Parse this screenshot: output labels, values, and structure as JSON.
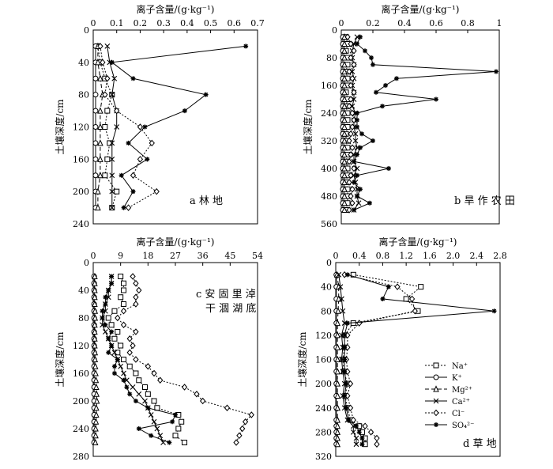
{
  "units_label": "离子含量/(g·kg⁻¹)",
  "ylabel": "土壤深度/cm",
  "legend": [
    {
      "key": "Na",
      "label": "Na⁺",
      "marker": "square",
      "dash": "2,2"
    },
    {
      "key": "K",
      "label": "K⁺",
      "marker": "circle",
      "dash": ""
    },
    {
      "key": "Mg",
      "label": "Mg²⁺",
      "marker": "triangle",
      "dash": "5,3"
    },
    {
      "key": "Ca",
      "label": "Ca²⁺",
      "marker": "x",
      "dash": ""
    },
    {
      "key": "Cl",
      "label": "Cl⁻",
      "marker": "diamond",
      "dash": "2,2"
    },
    {
      "key": "SO4",
      "label": "SO₄²⁻",
      "marker": "star",
      "dash": ""
    }
  ],
  "chart_data": [
    {
      "type": "line",
      "panel": "a 林地",
      "xlabel": "离子含量/(g·kg⁻¹)",
      "ylabel": "土壤深度/cm",
      "xlim": [
        0,
        0.7
      ],
      "xticks": [
        "0",
        "0.1",
        "0.2",
        "0.3",
        "0.4",
        "0.5",
        "0.6",
        "0.7"
      ],
      "ylim": [
        0,
        240
      ],
      "yticks": [
        "0",
        "40",
        "80",
        "120",
        "160",
        "200",
        "240"
      ],
      "depth": [
        20,
        40,
        60,
        80,
        100,
        120,
        140,
        160,
        180,
        200,
        220
      ],
      "series": [
        {
          "name": "Na⁺",
          "key": "Na",
          "values": [
            0.02,
            0.03,
            0.05,
            0.08,
            0.06,
            0.05,
            0.07,
            0.06,
            0.05,
            0.1,
            0.08
          ]
        },
        {
          "name": "K⁺",
          "key": "K",
          "values": [
            0.01,
            0.01,
            0.01,
            0.01,
            0.01,
            0.01,
            0.01,
            0.01,
            0.01,
            0.01,
            0.01
          ]
        },
        {
          "name": "Mg²⁺",
          "key": "Mg",
          "values": [
            0.02,
            0.02,
            0.03,
            0.04,
            0.03,
            0.03,
            0.03,
            0.03,
            0.03,
            0.02,
            0.02
          ]
        },
        {
          "name": "Ca²⁺",
          "key": "Ca",
          "values": [
            0.06,
            0.07,
            0.09,
            0.08,
            0.1,
            0.1,
            0.08,
            0.08,
            0.08,
            0.08,
            0.08
          ]
        },
        {
          "name": "Cl⁻",
          "key": "Cl",
          "values": [
            0.03,
            0.04,
            0.06,
            0.05,
            0.1,
            0.2,
            0.25,
            0.2,
            0.17,
            0.27,
            0.15
          ]
        },
        {
          "name": "SO₄²⁻",
          "key": "SO4",
          "values": [
            0.65,
            0.08,
            0.17,
            0.48,
            0.39,
            0.22,
            0.15,
            0.23,
            0.12,
            0.17,
            0.13
          ]
        }
      ]
    },
    {
      "type": "line",
      "panel": "b 旱作农田",
      "xlabel": "离子含量/(g·kg⁻¹)",
      "ylabel": "土壤深度/cm",
      "xlim": [
        0,
        1.0
      ],
      "xticks": [
        "0",
        "0.2",
        "0.4",
        "0.6",
        "0.8",
        "1"
      ],
      "ylim": [
        0,
        560
      ],
      "yticks": [
        "0",
        "80",
        "160",
        "240",
        "320",
        "400",
        "480",
        "560"
      ],
      "depth": [
        20,
        40,
        60,
        80,
        100,
        120,
        140,
        160,
        180,
        200,
        220,
        240,
        260,
        280,
        300,
        320,
        340,
        360,
        380,
        400,
        420,
        440,
        460,
        480,
        500,
        520
      ],
      "series": [
        {
          "name": "Na⁺",
          "key": "Na",
          "values": [
            0.03,
            0.04,
            0.03,
            0.04,
            0.04,
            0.03,
            0.04,
            0.04,
            0.03,
            0.04,
            0.03,
            0.04,
            0.04,
            0.04,
            0.03,
            0.03,
            0.04,
            0.04,
            0.03,
            0.04,
            0.04,
            0.03,
            0.04,
            0.04,
            0.04,
            0.03
          ]
        },
        {
          "name": "K⁺",
          "key": "K",
          "values": [
            0.01,
            0.01,
            0.01,
            0.01,
            0.01,
            0.01,
            0.01,
            0.01,
            0.01,
            0.01,
            0.01,
            0.01,
            0.01,
            0.01,
            0.01,
            0.01,
            0.01,
            0.01,
            0.01,
            0.01,
            0.01,
            0.01,
            0.01,
            0.01,
            0.01,
            0.01
          ]
        },
        {
          "name": "Mg²⁺",
          "key": "Mg",
          "values": [
            0.02,
            0.02,
            0.02,
            0.02,
            0.02,
            0.02,
            0.02,
            0.02,
            0.02,
            0.02,
            0.02,
            0.02,
            0.02,
            0.02,
            0.02,
            0.02,
            0.02,
            0.02,
            0.02,
            0.02,
            0.02,
            0.02,
            0.02,
            0.02,
            0.02,
            0.02
          ]
        },
        {
          "name": "Ca²⁺",
          "key": "Ca",
          "values": [
            0.1,
            0.08,
            0.07,
            0.07,
            0.08,
            0.07,
            0.08,
            0.07,
            0.08,
            0.08,
            0.07,
            0.09,
            0.08,
            0.08,
            0.09,
            0.09,
            0.1,
            0.08,
            0.08,
            0.1,
            0.08,
            0.09,
            0.1,
            0.1,
            0.11,
            0.08
          ]
        },
        {
          "name": "Cl⁻",
          "key": "Cl",
          "values": [
            0.04,
            0.06,
            0.08,
            0.06,
            0.08,
            0.05,
            0.07,
            0.06,
            0.08,
            0.06,
            0.05,
            0.07,
            0.08,
            0.07,
            0.06,
            0.05,
            0.07,
            0.06,
            0.05,
            0.08,
            0.06,
            0.05,
            0.07,
            0.06,
            0.07,
            0.05
          ]
        },
        {
          "name": "SO₄²⁻",
          "key": "SO4",
          "values": [
            0.12,
            0.1,
            0.15,
            0.19,
            0.2,
            0.98,
            0.35,
            0.28,
            0.22,
            0.6,
            0.26,
            0.1,
            0.1,
            0.1,
            0.13,
            0.2,
            0.12,
            0.1,
            0.08,
            0.3,
            0.1,
            0.08,
            0.12,
            0.1,
            0.18,
            0.08
          ]
        }
      ]
    },
    {
      "type": "line",
      "panel": "c 安固里淖干涸湖底",
      "xlabel": "离子含量/(g·kg⁻¹)",
      "ylabel": "土壤深度/cm",
      "xlim": [
        0,
        54
      ],
      "xticks": [
        "0",
        "9",
        "18",
        "27",
        "36",
        "45",
        "54"
      ],
      "ylim": [
        0,
        280
      ],
      "yticks": [
        "0",
        "40",
        "80",
        "120",
        "160",
        "200",
        "240",
        "280"
      ],
      "depth": [
        20,
        30,
        40,
        50,
        60,
        70,
        80,
        90,
        100,
        110,
        120,
        130,
        140,
        150,
        160,
        170,
        180,
        190,
        200,
        210,
        220,
        230,
        240,
        250,
        260
      ],
      "series": [
        {
          "name": "Na⁺",
          "key": "Na",
          "values": [
            9,
            10,
            10,
            9,
            10,
            7,
            5,
            6,
            8,
            7,
            9,
            8,
            10,
            12,
            14,
            15,
            17,
            18,
            20,
            21,
            28,
            29,
            28,
            27,
            30
          ]
        },
        {
          "name": "K⁺",
          "key": "K",
          "values": [
            0.3,
            0.3,
            0.3,
            0.3,
            0.3,
            0.3,
            0.3,
            0.3,
            0.3,
            0.3,
            0.3,
            0.3,
            0.3,
            0.3,
            0.3,
            0.3,
            0.3,
            0.3,
            0.3,
            0.3,
            0.3,
            0.3,
            0.3,
            0.3,
            0.3
          ]
        },
        {
          "name": "Mg²⁺",
          "key": "Mg",
          "values": [
            0.5,
            0.5,
            0.5,
            0.5,
            0.5,
            0.6,
            0.6,
            0.5,
            0.5,
            0.5,
            0.5,
            0.6,
            0.6,
            0.7,
            0.8,
            0.9,
            1,
            1.1,
            1.2,
            1,
            1,
            0.9,
            0.8,
            0.8,
            0.7
          ]
        },
        {
          "name": "Ca²⁺",
          "key": "Ca",
          "values": [
            6,
            6,
            5,
            5,
            4,
            4,
            3,
            3,
            4,
            5,
            6,
            7,
            8,
            9,
            10,
            11,
            13,
            15,
            17,
            18,
            19,
            20,
            21,
            22,
            23
          ]
        },
        {
          "name": "Cl⁻",
          "key": "Cl",
          "values": [
            13,
            14,
            15,
            14,
            14,
            10,
            8,
            10,
            14,
            12,
            13,
            12,
            14,
            18,
            20,
            22,
            30,
            34,
            36,
            44,
            52,
            50,
            49,
            48,
            47
          ]
        },
        {
          "name": "SO₄²⁻",
          "key": "SO4",
          "values": [
            6,
            6,
            5,
            4,
            4,
            3,
            3,
            4,
            6,
            5,
            6,
            5,
            8,
            7,
            7,
            10,
            11,
            12,
            14,
            18,
            27,
            26,
            15,
            19,
            25
          ]
        }
      ]
    },
    {
      "type": "line",
      "panel": "d 草地",
      "xlabel": "离子含量/(g·kg⁻¹)",
      "ylabel": "土壤深度/cm",
      "xlim": [
        0,
        2.8
      ],
      "xticks": [
        "0",
        "0.4",
        "0.8",
        "1.2",
        "1.6",
        "2.0",
        "2.4",
        "2.8"
      ],
      "ylim": [
        0,
        320
      ],
      "yticks": [
        "0",
        "40",
        "80",
        "120",
        "160",
        "200",
        "240",
        "280",
        "320"
      ],
      "depth": [
        20,
        40,
        60,
        80,
        100,
        120,
        140,
        160,
        180,
        200,
        220,
        240,
        260,
        270,
        280,
        290,
        300
      ],
      "series": [
        {
          "name": "Na⁺",
          "key": "Na",
          "values": [
            0.3,
            1.45,
            1.2,
            1.4,
            0.3,
            0.15,
            0.15,
            0.12,
            0.14,
            0.2,
            0.16,
            0.2,
            0.25,
            0.4,
            0.45,
            0.5,
            0.5
          ]
        },
        {
          "name": "K⁺",
          "key": "K",
          "values": [
            0.01,
            0.01,
            0.01,
            0.01,
            0.01,
            0.01,
            0.01,
            0.01,
            0.01,
            0.01,
            0.01,
            0.01,
            0.01,
            0.01,
            0.01,
            0.01,
            0.01
          ]
        },
        {
          "name": "Mg²⁺",
          "key": "Mg",
          "values": [
            0.02,
            0.05,
            0.05,
            0.04,
            0.03,
            0.03,
            0.03,
            0.03,
            0.03,
            0.03,
            0.03,
            0.03,
            0.03,
            0.03,
            0.03,
            0.03,
            0.03
          ]
        },
        {
          "name": "Ca²⁺",
          "key": "Ca",
          "values": [
            0.05,
            0.08,
            0.1,
            0.12,
            0.15,
            0.1,
            0.12,
            0.1,
            0.12,
            0.15,
            0.12,
            0.15,
            0.2,
            0.3,
            0.3,
            0.35,
            0.35
          ]
        },
        {
          "name": "Cl⁻",
          "key": "Cl",
          "values": [
            0.15,
            1.05,
            1.3,
            1.35,
            0.4,
            0.2,
            0.2,
            0.18,
            0.2,
            0.25,
            0.2,
            0.25,
            0.3,
            0.5,
            0.6,
            0.7,
            0.7
          ]
        },
        {
          "name": "SO₄²⁻",
          "key": "SO4",
          "values": [
            0.2,
            0.9,
            0.8,
            2.7,
            0.2,
            0.15,
            0.15,
            0.15,
            0.15,
            0.18,
            0.15,
            0.18,
            0.22,
            0.35,
            0.4,
            0.45,
            0.45
          ]
        }
      ]
    }
  ]
}
